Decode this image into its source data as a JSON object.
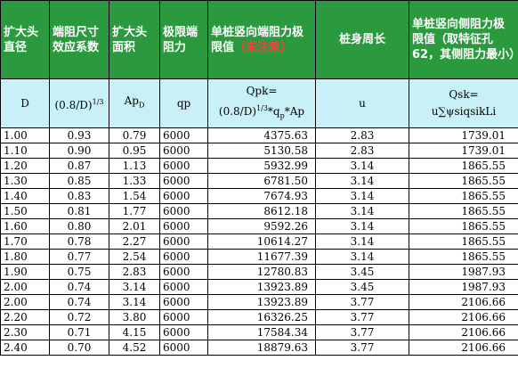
{
  "headers": {
    "col1": "扩大头直径",
    "col2": "端阻尺寸效应系数",
    "col3": "扩大头面积",
    "col4": "极限端阻力",
    "col5_main": "单桩竖向端阻力极限值",
    "col5_note": "（未注浆）",
    "col6": "桩身周长",
    "col7": "单桩竖向侧阻力极限值（取特征孔62，其侧阻力最小）"
  },
  "symbols": {
    "col1": "D",
    "col2_base": "(0.8/D)",
    "col2_exp": "1/3",
    "col3_base": "Ap",
    "col3_sub": "D",
    "col4": "qp",
    "col5_line1": "Qpk=",
    "col5_base": "(0.8/D)",
    "col5_exp": "1/3",
    "col5_mid": "*q",
    "col5_sub": "p",
    "col5_tail": "*Ap",
    "col6": "u",
    "col7_line1": "Qsk=",
    "col7_line2": "u∑ψsiqsikLi"
  },
  "rows": [
    {
      "d": "1.00",
      "coef": "0.93",
      "area": "0.79",
      "qp": "6000",
      "qpk": "4375.63",
      "u": "2.83",
      "qsk": "1739.01"
    },
    {
      "d": "1.10",
      "coef": "0.90",
      "area": "0.95",
      "qp": "6000",
      "qpk": "5130.58",
      "u": "2.83",
      "qsk": "1739.01"
    },
    {
      "d": "1.20",
      "coef": "0.87",
      "area": "1.13",
      "qp": "6000",
      "qpk": "5932.99",
      "u": "3.14",
      "qsk": "1865.55"
    },
    {
      "d": "1.30",
      "coef": "0.85",
      "area": "1.33",
      "qp": "6000",
      "qpk": "6781.50",
      "u": "3.14",
      "qsk": "1865.55"
    },
    {
      "d": "1.40",
      "coef": "0.83",
      "area": "1.54",
      "qp": "6000",
      "qpk": "7674.93",
      "u": "3.14",
      "qsk": "1865.55"
    },
    {
      "d": "1.50",
      "coef": "0.81",
      "area": "1.77",
      "qp": "6000",
      "qpk": "8612.18",
      "u": "3.14",
      "qsk": "1865.55"
    },
    {
      "d": "1.60",
      "coef": "0.80",
      "area": "2.01",
      "qp": "6000",
      "qpk": "9592.26",
      "u": "3.14",
      "qsk": "1865.55"
    },
    {
      "d": "1.70",
      "coef": "0.78",
      "area": "2.27",
      "qp": "6000",
      "qpk": "10614.27",
      "u": "3.14",
      "qsk": "1865.55"
    },
    {
      "d": "1.80",
      "coef": "0.77",
      "area": "2.54",
      "qp": "6000",
      "qpk": "11677.39",
      "u": "3.14",
      "qsk": "1865.55"
    },
    {
      "d": "1.90",
      "coef": "0.75",
      "area": "2.83",
      "qp": "6000",
      "qpk": "12780.83",
      "u": "3.45",
      "qsk": "1987.93"
    },
    {
      "d": "2.00",
      "coef": "0.74",
      "area": "3.14",
      "qp": "6000",
      "qpk": "13923.89",
      "u": "3.45",
      "qsk": "1987.93"
    },
    {
      "d": "2.00",
      "coef": "0.74",
      "area": "3.14",
      "qp": "6000",
      "qpk": "13923.89",
      "u": "3.77",
      "qsk": "2106.66"
    },
    {
      "d": "2.20",
      "coef": "0.72",
      "area": "3.80",
      "qp": "6000",
      "qpk": "16326.25",
      "u": "3.77",
      "qsk": "2106.66"
    },
    {
      "d": "2.30",
      "coef": "0.71",
      "area": "4.15",
      "qp": "6000",
      "qpk": "17584.34",
      "u": "3.77",
      "qsk": "2106.66"
    },
    {
      "d": "2.40",
      "coef": "0.70",
      "area": "4.52",
      "qp": "6000",
      "qpk": "18879.63",
      "u": "3.77",
      "qsk": "2106.66"
    }
  ]
}
